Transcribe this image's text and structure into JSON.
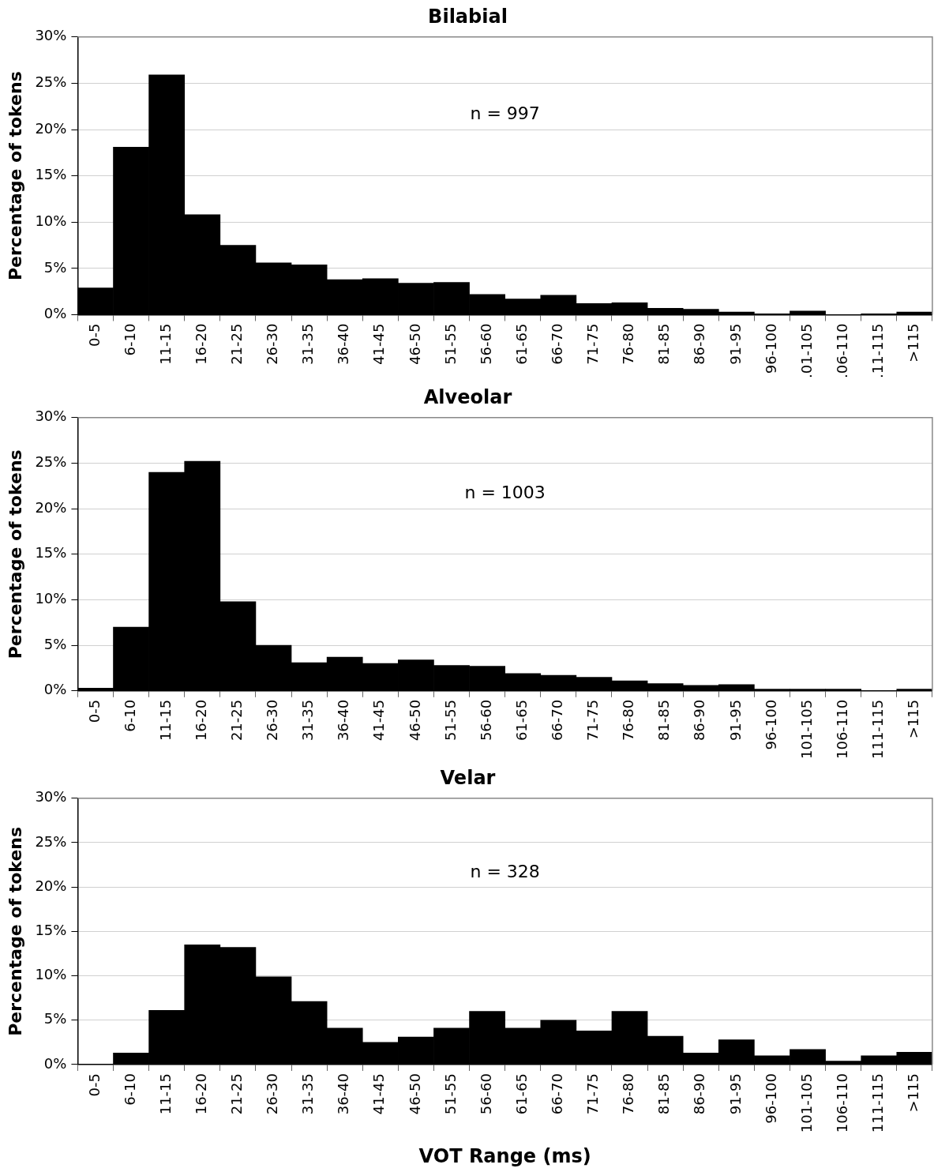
{
  "chart_data": [
    {
      "type": "bar",
      "title": "Bilabial",
      "ylabel": "Percentage of tokens",
      "categories": [
        "0-5",
        "6-10",
        "11-15",
        "16-20",
        "21-25",
        "26-30",
        "31-35",
        "36-40",
        "41-45",
        "46-50",
        "51-55",
        "56-60",
        "61-65",
        "66-70",
        "71-75",
        "76-80",
        "81-85",
        "86-90",
        "91-95",
        "96-100",
        ".01-105",
        ".06-110",
        ".11-115",
        ">115"
      ],
      "values": [
        2.9,
        18.1,
        25.9,
        10.8,
        7.5,
        5.6,
        5.4,
        3.8,
        3.9,
        3.4,
        3.5,
        2.2,
        1.7,
        2.1,
        1.2,
        1.3,
        0.7,
        0.6,
        0.3,
        0.1,
        0.4,
        0,
        0.1,
        0.3
      ],
      "color": "#000000",
      "ylim": [
        0,
        30
      ],
      "yticks": [
        {
          "value": 0,
          "label": "0%"
        },
        {
          "value": 5,
          "label": "5%"
        },
        {
          "value": 10,
          "label": "10%"
        },
        {
          "value": 15,
          "label": "15%"
        },
        {
          "value": 20,
          "label": "20%"
        },
        {
          "value": 25,
          "label": "25%"
        },
        {
          "value": 30,
          "label": "30%"
        }
      ],
      "grid": "y",
      "annotations": [
        "n = 997"
      ]
    },
    {
      "type": "bar",
      "title": "Alveolar",
      "ylabel": "Percentage of tokens",
      "categories": [
        "0-5",
        "6-10",
        "11-15",
        "16-20",
        "21-25",
        "26-30",
        "31-35",
        "36-40",
        "41-45",
        "46-50",
        "51-55",
        "56-60",
        "61-65",
        "66-70",
        "71-75",
        "76-80",
        "81-85",
        "86-90",
        "91-95",
        "96-100",
        "101-105",
        "106-110",
        "111-115",
        ">115"
      ],
      "values": [
        0.3,
        7.0,
        24.0,
        25.2,
        9.8,
        5.0,
        3.1,
        3.7,
        3.0,
        3.4,
        2.8,
        2.7,
        1.9,
        1.7,
        1.5,
        1.1,
        0.8,
        0.6,
        0.7,
        0.2,
        0.2,
        0.2,
        0,
        0.2
      ],
      "color": "#000000",
      "ylim": [
        0,
        30
      ],
      "yticks": [
        {
          "value": 0,
          "label": "0%"
        },
        {
          "value": 5,
          "label": "5%"
        },
        {
          "value": 10,
          "label": "10%"
        },
        {
          "value": 15,
          "label": "15%"
        },
        {
          "value": 20,
          "label": "20%"
        },
        {
          "value": 25,
          "label": "25%"
        },
        {
          "value": 30,
          "label": "30%"
        }
      ],
      "grid": "y",
      "annotations": [
        "n = 1003"
      ]
    },
    {
      "type": "bar",
      "title": "Velar",
      "ylabel": "Percentage of tokens",
      "xlabel": "VOT Range (ms)",
      "categories": [
        "0-5",
        "6-10",
        "11-15",
        "16-20",
        "21-25",
        "26-30",
        "31-35",
        "36-40",
        "41-45",
        "46-50",
        "51-55",
        "56-60",
        "61-65",
        "66-70",
        "71-75",
        "76-80",
        "81-85",
        "86-90",
        "91-95",
        "96-100",
        "101-105",
        "106-110",
        "111-115",
        ">115"
      ],
      "values": [
        0,
        1.3,
        6.1,
        13.5,
        13.2,
        9.9,
        7.1,
        4.1,
        2.5,
        3.1,
        4.1,
        6.0,
        4.1,
        5.0,
        3.8,
        6.0,
        3.2,
        1.3,
        2.8,
        1.0,
        1.7,
        0.4,
        1.0,
        1.4
      ],
      "color": "#000000",
      "ylim": [
        0,
        30
      ],
      "yticks": [
        {
          "value": 0,
          "label": "0%"
        },
        {
          "value": 5,
          "label": "5%"
        },
        {
          "value": 10,
          "label": "10%"
        },
        {
          "value": 15,
          "label": "15%"
        },
        {
          "value": 20,
          "label": "20%"
        },
        {
          "value": 25,
          "label": "25%"
        },
        {
          "value": 30,
          "label": "30%"
        }
      ],
      "grid": "y",
      "annotations": [
        "n = 328"
      ]
    }
  ]
}
